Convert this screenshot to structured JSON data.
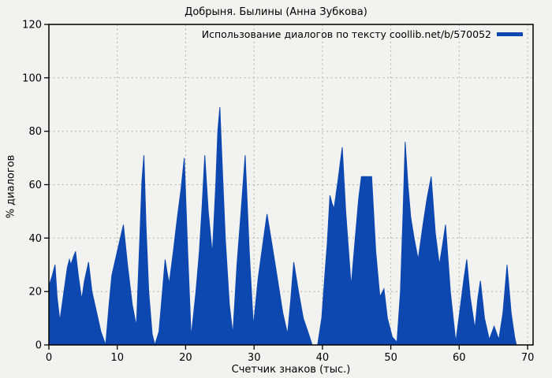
{
  "title": "Добрыня. Былины (Анна Зубкова)",
  "legend": {
    "label": "Использование диалогов по тексту coollib.net/b/570052",
    "color": "#0d47b0"
  },
  "colors": {
    "background": "#f2f2f0",
    "series_fill": "#0d47b0",
    "grid": "#b0b0b0",
    "text": "#000000",
    "frame": "#000000"
  },
  "chart_data": {
    "type": "area",
    "title": "Добрыня. Былины (Анна Зубкова)",
    "xlabel": "Счетчик знаков (тыс.)",
    "ylabel": "% диалогов",
    "xlim": [
      0,
      70.8
    ],
    "ylim": [
      0,
      120
    ],
    "xticks": [
      0,
      10,
      20,
      30,
      40,
      50,
      60,
      70
    ],
    "yticks": [
      0,
      20,
      40,
      60,
      80,
      100,
      120
    ],
    "grid": true,
    "legend_position": "top-right",
    "series": [
      {
        "name": "Использование диалогов по тексту coollib.net/b/570052",
        "color": "#0d47b0",
        "points": [
          [
            0,
            22
          ],
          [
            0.5,
            26
          ],
          [
            0.9,
            30
          ],
          [
            1.2,
            18
          ],
          [
            1.6,
            9
          ],
          [
            2.2,
            20
          ],
          [
            2.7,
            29
          ],
          [
            3,
            32
          ],
          [
            3.2,
            30
          ],
          [
            3.6,
            33
          ],
          [
            3.9,
            35
          ],
          [
            4.3,
            26
          ],
          [
            4.8,
            17
          ],
          [
            5.2,
            24
          ],
          [
            5.8,
            31
          ],
          [
            6.3,
            20
          ],
          [
            7,
            12
          ],
          [
            7.6,
            5
          ],
          [
            8.3,
            0
          ],
          [
            8.8,
            15
          ],
          [
            9.2,
            26
          ],
          [
            10,
            35
          ],
          [
            10.9,
            45
          ],
          [
            11.5,
            30
          ],
          [
            12.2,
            15
          ],
          [
            12.8,
            7
          ],
          [
            13.3,
            40
          ],
          [
            13.6,
            61
          ],
          [
            13.9,
            71
          ],
          [
            14.2,
            45
          ],
          [
            14.6,
            20
          ],
          [
            15.1,
            4
          ],
          [
            15.5,
            0
          ],
          [
            16.1,
            5
          ],
          [
            16.6,
            20
          ],
          [
            17,
            32
          ],
          [
            17.3,
            27
          ],
          [
            17.6,
            23
          ],
          [
            18.2,
            35
          ],
          [
            18.8,
            48
          ],
          [
            19.3,
            58
          ],
          [
            19.8,
            70
          ],
          [
            20.3,
            35
          ],
          [
            20.8,
            3
          ],
          [
            21.5,
            20
          ],
          [
            22,
            35
          ],
          [
            22.4,
            52
          ],
          [
            22.8,
            71
          ],
          [
            23.3,
            50
          ],
          [
            23.9,
            34
          ],
          [
            24.4,
            60
          ],
          [
            24.7,
            80
          ],
          [
            25,
            89
          ],
          [
            25.3,
            70
          ],
          [
            25.8,
            40
          ],
          [
            26.4,
            15
          ],
          [
            26.9,
            4
          ],
          [
            27.5,
            30
          ],
          [
            28.1,
            50
          ],
          [
            28.7,
            71
          ],
          [
            29.3,
            35
          ],
          [
            29.9,
            7
          ],
          [
            30.6,
            25
          ],
          [
            31.3,
            38
          ],
          [
            31.9,
            49
          ],
          [
            32.6,
            38
          ],
          [
            33.4,
            25
          ],
          [
            34.2,
            12
          ],
          [
            34.9,
            4
          ],
          [
            35.4,
            18
          ],
          [
            35.8,
            31
          ],
          [
            36.5,
            20
          ],
          [
            37.2,
            10
          ],
          [
            38,
            4
          ],
          [
            38.5,
            0
          ],
          [
            39.3,
            0
          ],
          [
            39.9,
            10
          ],
          [
            40.4,
            28
          ],
          [
            40.7,
            38
          ],
          [
            41.1,
            56
          ],
          [
            41.4,
            53
          ],
          [
            41.7,
            51
          ],
          [
            42.3,
            62
          ],
          [
            42.9,
            74
          ],
          [
            43.4,
            50
          ],
          [
            44.2,
            22
          ],
          [
            44.8,
            40
          ],
          [
            45.3,
            55
          ],
          [
            45.7,
            63
          ],
          [
            47.2,
            63
          ],
          [
            47.8,
            35
          ],
          [
            48.4,
            18
          ],
          [
            49,
            21
          ],
          [
            49.5,
            10
          ],
          [
            50.2,
            3
          ],
          [
            50.9,
            1
          ],
          [
            51.4,
            20
          ],
          [
            51.8,
            50
          ],
          [
            52.1,
            76
          ],
          [
            52.5,
            60
          ],
          [
            52.9,
            48
          ],
          [
            53.4,
            40
          ],
          [
            54,
            32
          ],
          [
            54.7,
            45
          ],
          [
            55.3,
            55
          ],
          [
            55.9,
            63
          ],
          [
            56.5,
            42
          ],
          [
            57.1,
            30
          ],
          [
            57.6,
            38
          ],
          [
            58,
            45
          ],
          [
            58.7,
            20
          ],
          [
            59.5,
            1
          ],
          [
            60.2,
            15
          ],
          [
            60.7,
            25
          ],
          [
            61.1,
            32
          ],
          [
            61.6,
            18
          ],
          [
            62.3,
            6
          ],
          [
            62.7,
            17
          ],
          [
            63.1,
            24
          ],
          [
            63.7,
            10
          ],
          [
            64.4,
            2
          ],
          [
            65.1,
            7
          ],
          [
            65.8,
            2
          ],
          [
            66.4,
            12
          ],
          [
            67,
            30
          ],
          [
            67.6,
            12
          ],
          [
            68.1,
            3
          ],
          [
            68.35,
            0
          ]
        ]
      }
    ]
  }
}
